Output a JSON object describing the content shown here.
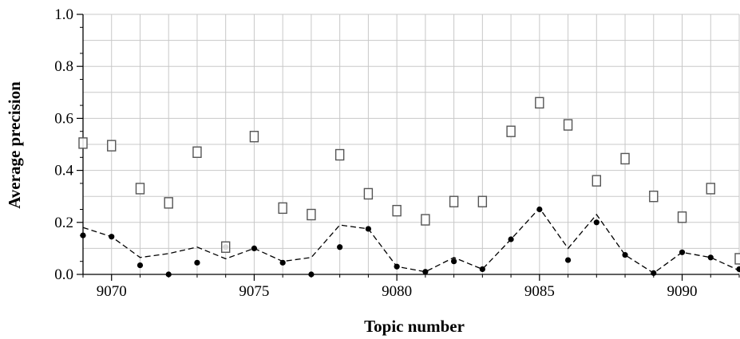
{
  "chart_data": {
    "type": "scatter",
    "title": "",
    "xlabel": "Topic number",
    "ylabel": "Average precision",
    "xlim": [
      9069,
      9092
    ],
    "ylim": [
      0.0,
      1.0
    ],
    "x_ticks": [
      9070,
      9075,
      9080,
      9085,
      9090
    ],
    "x_tick_labels": [
      "9070",
      "9075",
      "9080",
      "9085",
      "9090"
    ],
    "y_ticks": [
      0.0,
      0.2,
      0.4,
      0.6,
      0.8,
      1.0
    ],
    "y_tick_labels": [
      "0.0",
      "0.2",
      "0.4",
      "0.6",
      "0.8",
      "1.0"
    ],
    "grid": true,
    "x": [
      9069,
      9070,
      9071,
      9072,
      9073,
      9074,
      9075,
      9076,
      9077,
      9078,
      9079,
      9080,
      9081,
      9082,
      9083,
      9084,
      9085,
      9086,
      9087,
      9088,
      9089,
      9090,
      9091,
      9092
    ],
    "series": [
      {
        "marker": "open-square",
        "color": "#555555",
        "values": [
          0.505,
          0.495,
          0.33,
          0.275,
          0.47,
          0.105,
          0.53,
          0.255,
          0.23,
          0.46,
          0.31,
          0.245,
          0.21,
          0.28,
          0.28,
          0.55,
          0.66,
          0.575,
          0.36,
          0.445,
          0.3,
          0.22,
          0.33,
          0.06
        ]
      },
      {
        "marker": "filled-circle",
        "color": "#000000",
        "values": [
          0.15,
          0.145,
          0.035,
          0.0,
          0.045,
          0.105,
          0.1,
          0.045,
          0.0,
          0.105,
          0.175,
          0.03,
          0.01,
          0.05,
          0.02,
          0.135,
          0.25,
          0.055,
          0.2,
          0.075,
          0.005,
          0.085,
          0.065,
          0.02
        ]
      },
      {
        "marker": "dashed-line",
        "color": "#000000",
        "values": [
          0.18,
          0.145,
          0.065,
          0.08,
          0.105,
          0.06,
          0.1,
          0.05,
          0.065,
          0.19,
          0.175,
          0.03,
          0.01,
          0.065,
          0.02,
          0.135,
          0.255,
          0.1,
          0.23,
          0.075,
          0.005,
          0.085,
          0.065,
          0.015
        ]
      }
    ]
  }
}
